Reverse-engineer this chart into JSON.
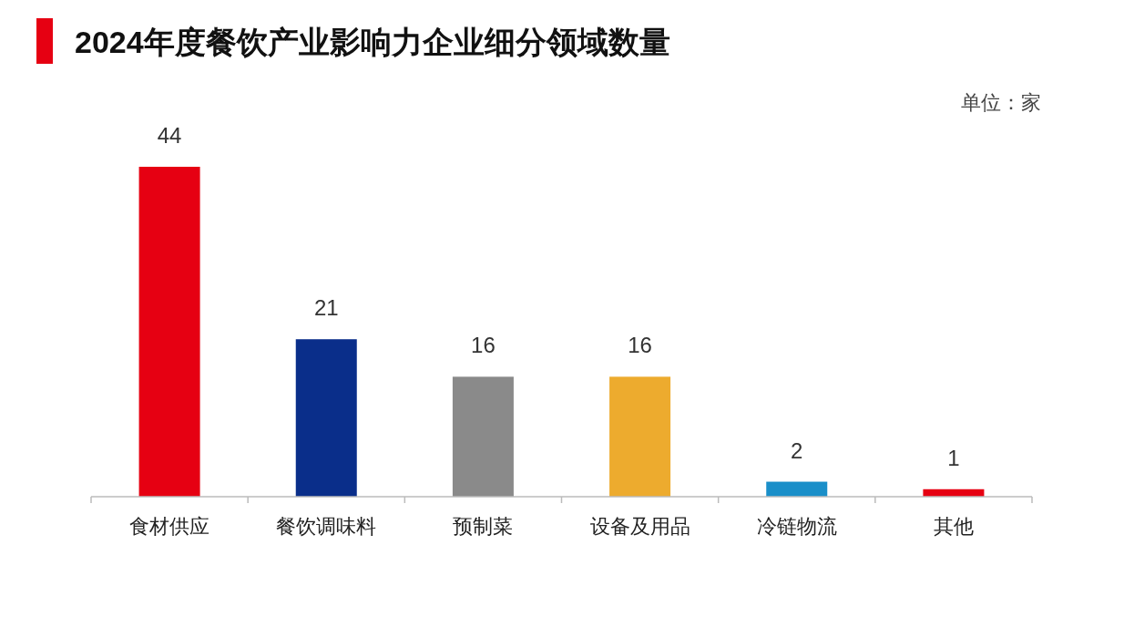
{
  "chart_data": {
    "type": "bar",
    "title": "2024年度餐饮产业影响力企业细分领域数量",
    "categories": [
      "食材供应",
      "餐饮调味料",
      "预制菜",
      "设备及用品",
      "冷链物流",
      "其他"
    ],
    "values": [
      44,
      21,
      16,
      16,
      2,
      1
    ],
    "colors": [
      "#e60012",
      "#0a2e8a",
      "#8a8a8a",
      "#edab2e",
      "#1a8fc9",
      "#e60012"
    ],
    "data_labels": true,
    "annotations": [
      "单位：家"
    ]
  }
}
